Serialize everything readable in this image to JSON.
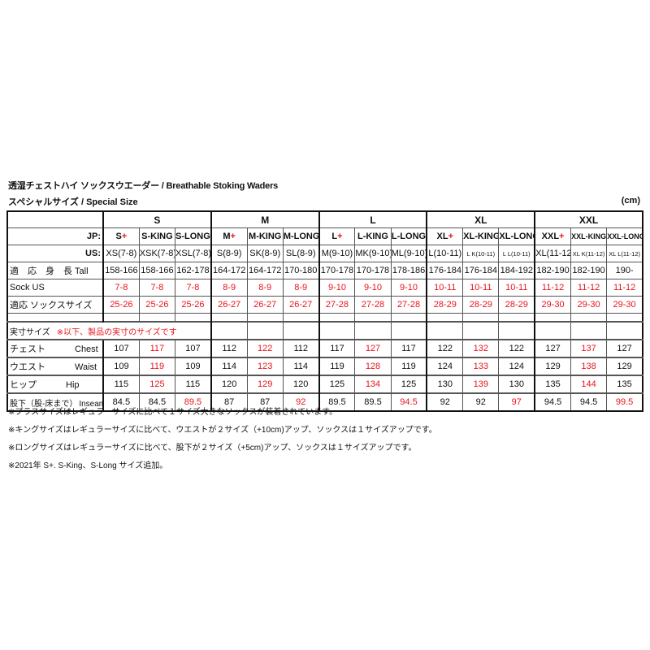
{
  "title": "透湿チェストハイ ソックスウエーダー / Breathable Stoking Waders",
  "subtitle": "スペシャルサイズ / Special Size",
  "unit": "(cm)",
  "highlight_color": "#e8141b",
  "groups": [
    "S",
    "M",
    "L",
    "XL",
    "XXL"
  ],
  "jp_label": "JP:",
  "us_label": "US:",
  "columns": [
    {
      "jp": "S",
      "plus": "+",
      "us": "XS(7-8)"
    },
    {
      "jp": "S-KING",
      "plus": "",
      "us": "XSK(7-8)"
    },
    {
      "jp": "S-LONG",
      "plus": "",
      "us": "XSL(7-8)"
    },
    {
      "jp": "M",
      "plus": "+",
      "us": "S(8-9)"
    },
    {
      "jp": "M-KING",
      "plus": "",
      "us": "SK(8-9)"
    },
    {
      "jp": "M-LONG",
      "plus": "",
      "us": "SL(8-9)"
    },
    {
      "jp": "L",
      "plus": "+",
      "us": "M(9-10)"
    },
    {
      "jp": "L-KING",
      "plus": "",
      "us": "MK(9-10)"
    },
    {
      "jp": "L-LONG",
      "plus": "",
      "us": "ML(9-10)"
    },
    {
      "jp": "XL",
      "plus": "+",
      "us": "L(10-11)"
    },
    {
      "jp": "XL-KING",
      "plus": "",
      "us": "L K(10-11)",
      "us_small": true
    },
    {
      "jp": "XL-LONG",
      "plus": "",
      "us": "L L(10-11)",
      "us_small": true
    },
    {
      "jp": "XXL",
      "plus": "+",
      "us": "XL(11-12)"
    },
    {
      "jp": "XXL-KING",
      "plus": "",
      "us": "XL K(11-12)",
      "us_small": true
    },
    {
      "jp": "XXL-LONG",
      "plus": "",
      "us": "XL L(11-12)",
      "us_small": true
    }
  ],
  "upper_rows": [
    {
      "label": "適　応　身　長 Tall",
      "values": [
        "158-166",
        "158-166",
        "162-178",
        "164-172",
        "164-172",
        "170-180",
        "170-178",
        "170-178",
        "178-186",
        "176-184",
        "176-184",
        "184-192",
        "182-190",
        "182-190",
        "190-"
      ],
      "red": false
    },
    {
      "label": "Sock US",
      "values": [
        "7-8",
        "7-8",
        "7-8",
        "8-9",
        "8-9",
        "8-9",
        "9-10",
        "9-10",
        "9-10",
        "10-11",
        "10-11",
        "10-11",
        "11-12",
        "11-12",
        "11-12"
      ],
      "red": true
    },
    {
      "label": "適応 ソックスサイズ",
      "values": [
        "25-26",
        "25-26",
        "25-26",
        "26-27",
        "26-27",
        "26-27",
        "27-28",
        "27-28",
        "27-28",
        "28-29",
        "28-29",
        "28-29",
        "29-30",
        "29-30",
        "29-30"
      ],
      "red": true
    }
  ],
  "actual_size": {
    "label": "実寸サイズ",
    "note": "※以下、製品の実寸のサイズです"
  },
  "measure_rows": [
    {
      "jp": "チェスト",
      "en": "Chest",
      "values": [
        "107",
        "117",
        "107",
        "112",
        "122",
        "112",
        "117",
        "127",
        "117",
        "122",
        "132",
        "122",
        "127",
        "137",
        "127"
      ],
      "red_pos": 1
    },
    {
      "jp": "ウエスト",
      "en": "Waist",
      "values": [
        "109",
        "119",
        "109",
        "114",
        "123",
        "114",
        "119",
        "128",
        "119",
        "124",
        "133",
        "124",
        "129",
        "138",
        "129"
      ],
      "red_pos": 1
    },
    {
      "jp": "ヒップ",
      "en": "Hip",
      "values": [
        "115",
        "125",
        "115",
        "120",
        "129",
        "120",
        "125",
        "134",
        "125",
        "130",
        "139",
        "130",
        "135",
        "144",
        "135"
      ],
      "red_pos": 1
    },
    {
      "jp": "股下（股-床まで）",
      "en": "Inseam",
      "values": [
        "84.5",
        "84.5",
        "89.5",
        "87",
        "87",
        "92",
        "89.5",
        "89.5",
        "94.5",
        "92",
        "92",
        "97",
        "94.5",
        "94.5",
        "99.5"
      ],
      "red_pos": 2
    }
  ],
  "notes": [
    "※プラスサイズはレギュラーサイズに比べて１サイズ大きなソックスが装着されています。",
    "※キングサイズはレギュラーサイズに比べて、ウエストが２サイズ（+10cm)アップ、ソックスは１サイズアップです。",
    "※ロングサイズはレギュラーサイズに比べて、股下が２サイズ（+5cm)アップ、ソックスは１サイズアップです。",
    "※2021年 S+. S-King、S-Long サイズ追加。"
  ]
}
